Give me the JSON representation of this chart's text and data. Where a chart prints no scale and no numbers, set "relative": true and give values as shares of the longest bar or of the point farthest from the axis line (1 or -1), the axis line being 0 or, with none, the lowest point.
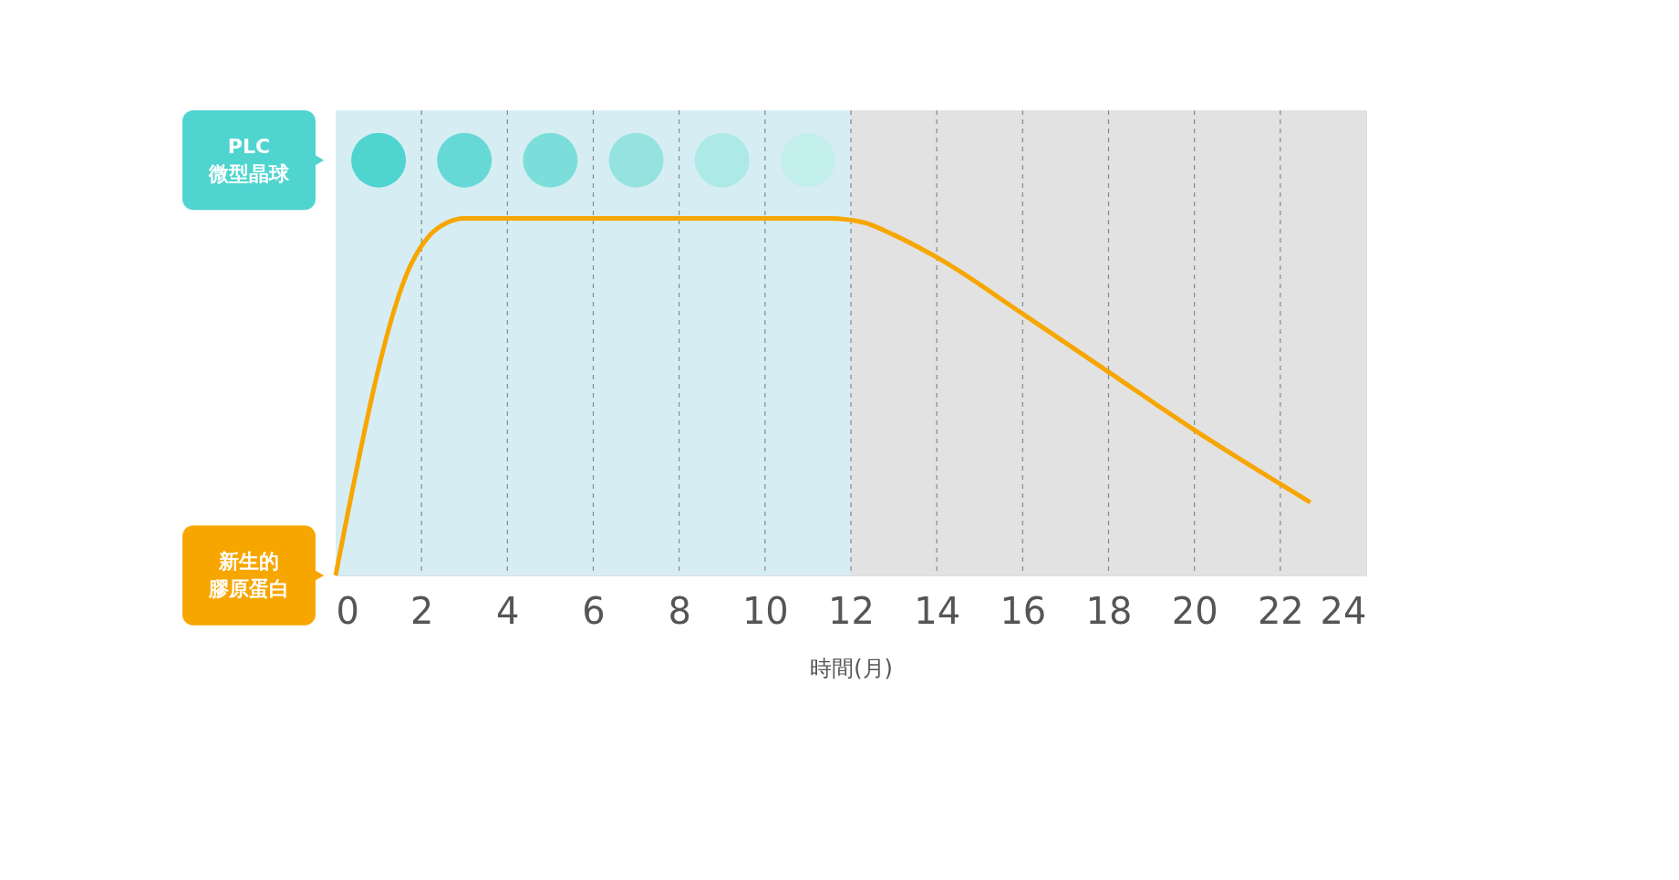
{
  "chart_data": {
    "type": "line",
    "relative": true,
    "xlabel": "時間(月)",
    "xlim": [
      0,
      24
    ],
    "xticks": [
      0,
      2,
      4,
      6,
      8,
      10,
      12,
      14,
      16,
      18,
      20,
      22,
      24
    ],
    "grid": "x",
    "legend": "left",
    "line_style": "solid",
    "bands": [
      {
        "axis": "x",
        "from": 0,
        "to": 12,
        "label": null,
        "color": "#d6eef3"
      },
      {
        "axis": "x",
        "from": 12,
        "to": 24,
        "label": null,
        "color": "#e2e2e2"
      }
    ],
    "series": [
      {
        "name": "PLC微型晶球",
        "type": "scatter",
        "color": "#4fd4d0",
        "colors": [
          "#4fd4d0",
          "#66d9d6",
          "#7cdedb",
          "#95e3e0",
          "#ade9e7",
          "#c3efed"
        ],
        "x": [
          1,
          3,
          5,
          7,
          9,
          11
        ],
        "values": [
          1,
          1,
          1,
          1,
          1,
          1
        ]
      },
      {
        "name": "新生的膠原蛋白",
        "color": "#f7a600",
        "x": [
          0,
          1.76,
          2.2,
          2.6,
          3,
          6,
          9,
          11.5,
          12.3,
          13,
          14.1,
          16,
          18,
          20,
          22.7
        ],
        "values": [
          0,
          0.75,
          0.82,
          0.85,
          0.86,
          0.86,
          0.86,
          0.86,
          0.85,
          0.82,
          0.76,
          0.63,
          0.49,
          0.35,
          0.176
        ]
      }
    ]
  }
}
